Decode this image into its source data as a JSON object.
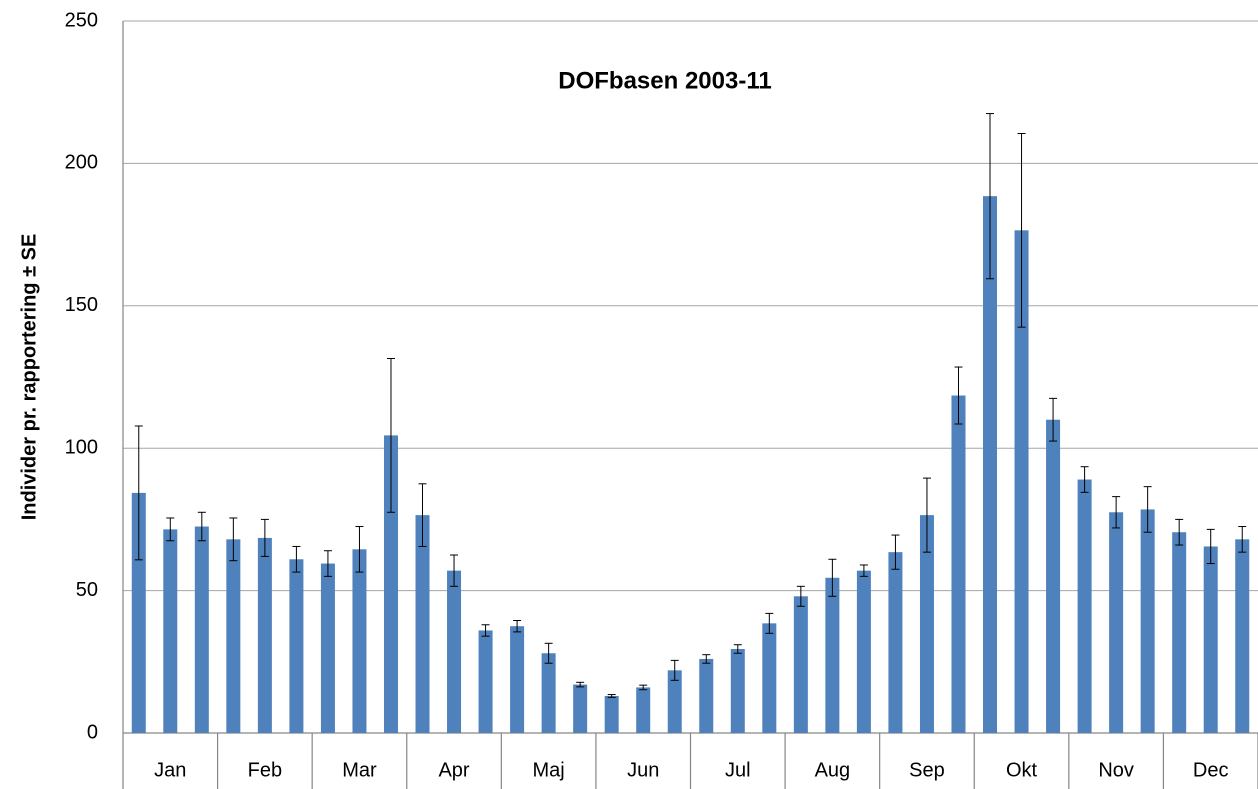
{
  "chart_data": {
    "type": "bar",
    "title": "DOFbasen 2003-11",
    "y_label": "Individer pr. rapportering ± SE",
    "categories": [
      null,
      "Jan",
      null,
      null,
      "Feb",
      null,
      null,
      "Mar",
      null,
      null,
      "Apr",
      null,
      null,
      "Maj",
      null,
      null,
      "Jun",
      null,
      null,
      "Jul",
      null,
      null,
      "Aug",
      null,
      null,
      "Sep",
      null,
      null,
      "Okt",
      null,
      null,
      "Nov",
      null,
      null,
      "Dec",
      null
    ],
    "values": [
      84.3,
      71.5,
      72.5,
      68,
      68.5,
      61,
      59.5,
      64.5,
      104.5,
      76.5,
      57,
      36,
      37.5,
      28,
      17,
      13,
      16,
      22,
      26,
      29.5,
      38.5,
      48,
      54.5,
      57,
      63.5,
      76.5,
      118.5,
      188.5,
      176.5,
      110,
      89,
      77.5,
      78.5,
      70.5,
      65.5,
      68
    ],
    "errors": [
      23.5,
      4,
      5,
      7.5,
      6.5,
      4.5,
      4.5,
      8,
      27,
      11,
      5.5,
      2,
      2,
      3.5,
      0.8,
      0.5,
      0.8,
      3.5,
      1.5,
      1.5,
      3.5,
      3.5,
      6.5,
      2,
      6,
      13,
      10,
      29,
      34,
      7.5,
      4.5,
      5.5,
      8,
      4.5,
      6,
      4.5
    ],
    "color": "#4f81bd",
    "ylim": [
      0,
      250
    ],
    "yticks": [
      0,
      50,
      100,
      150,
      200,
      250
    ],
    "grid": true
  }
}
